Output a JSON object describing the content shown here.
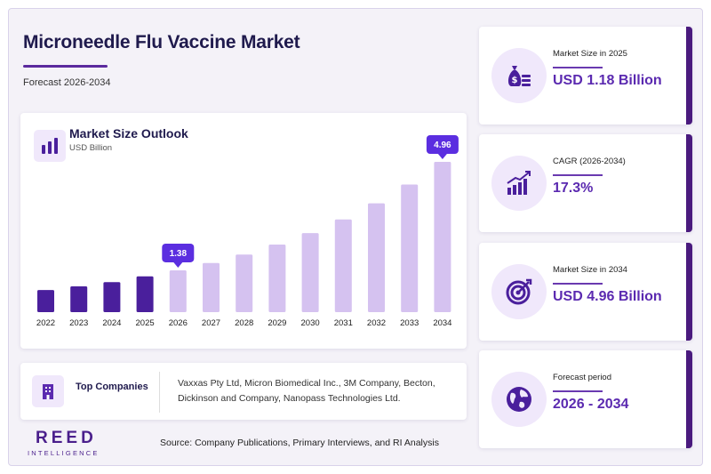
{
  "header": {
    "title": "Microneedle Flu Vaccine Market",
    "subtitle": "Forecast 2026-2034"
  },
  "chart_panel": {
    "title": "Market Size Outlook",
    "unit": "USD Billion",
    "icon": "bar-chart-icon"
  },
  "chart_data": {
    "type": "bar",
    "title": "Market Size Outlook",
    "ylabel": "USD Billion",
    "categories": [
      "2022",
      "2023",
      "2024",
      "2025",
      "2026",
      "2027",
      "2028",
      "2029",
      "2030",
      "2031",
      "2032",
      "2033",
      "2034"
    ],
    "values": [
      0.73,
      0.85,
      0.99,
      1.18,
      1.38,
      1.62,
      1.9,
      2.23,
      2.61,
      3.06,
      3.59,
      4.21,
      4.96
    ],
    "historical_count": 4,
    "callouts": [
      {
        "category": "2026",
        "label": "1.38"
      },
      {
        "category": "2034",
        "label": "4.96"
      }
    ],
    "ylim": [
      0,
      5.4
    ],
    "grid": false,
    "colors": {
      "historical": "#4a1f9c",
      "forecast": "#d5c2f0",
      "callout": "#5b2ee0"
    }
  },
  "companies": {
    "label": "Top Companies",
    "icon": "building-icon",
    "text": "Vaxxas Pty Ltd, Micron Biomedical Inc., 3M Company, Becton, Dickinson and Company, Nanopass Technologies Ltd."
  },
  "brand": {
    "name": "REED",
    "sub": "INTELLIGENCE"
  },
  "source": "Source: Company Publications, Primary Interviews, and RI Analysis",
  "stats": [
    {
      "label": "Market Size in 2025",
      "value": "USD 1.18 Billion",
      "icon": "money-bag-icon"
    },
    {
      "label": "CAGR (2026-2034)",
      "value": "17.3%",
      "icon": "growth-chart-icon"
    },
    {
      "label": "Market Size in 2034",
      "value": "USD 4.96 Billion",
      "icon": "target-icon"
    },
    {
      "label": "Forecast period",
      "value": "2026 - 2034",
      "icon": "globe-icon"
    }
  ]
}
